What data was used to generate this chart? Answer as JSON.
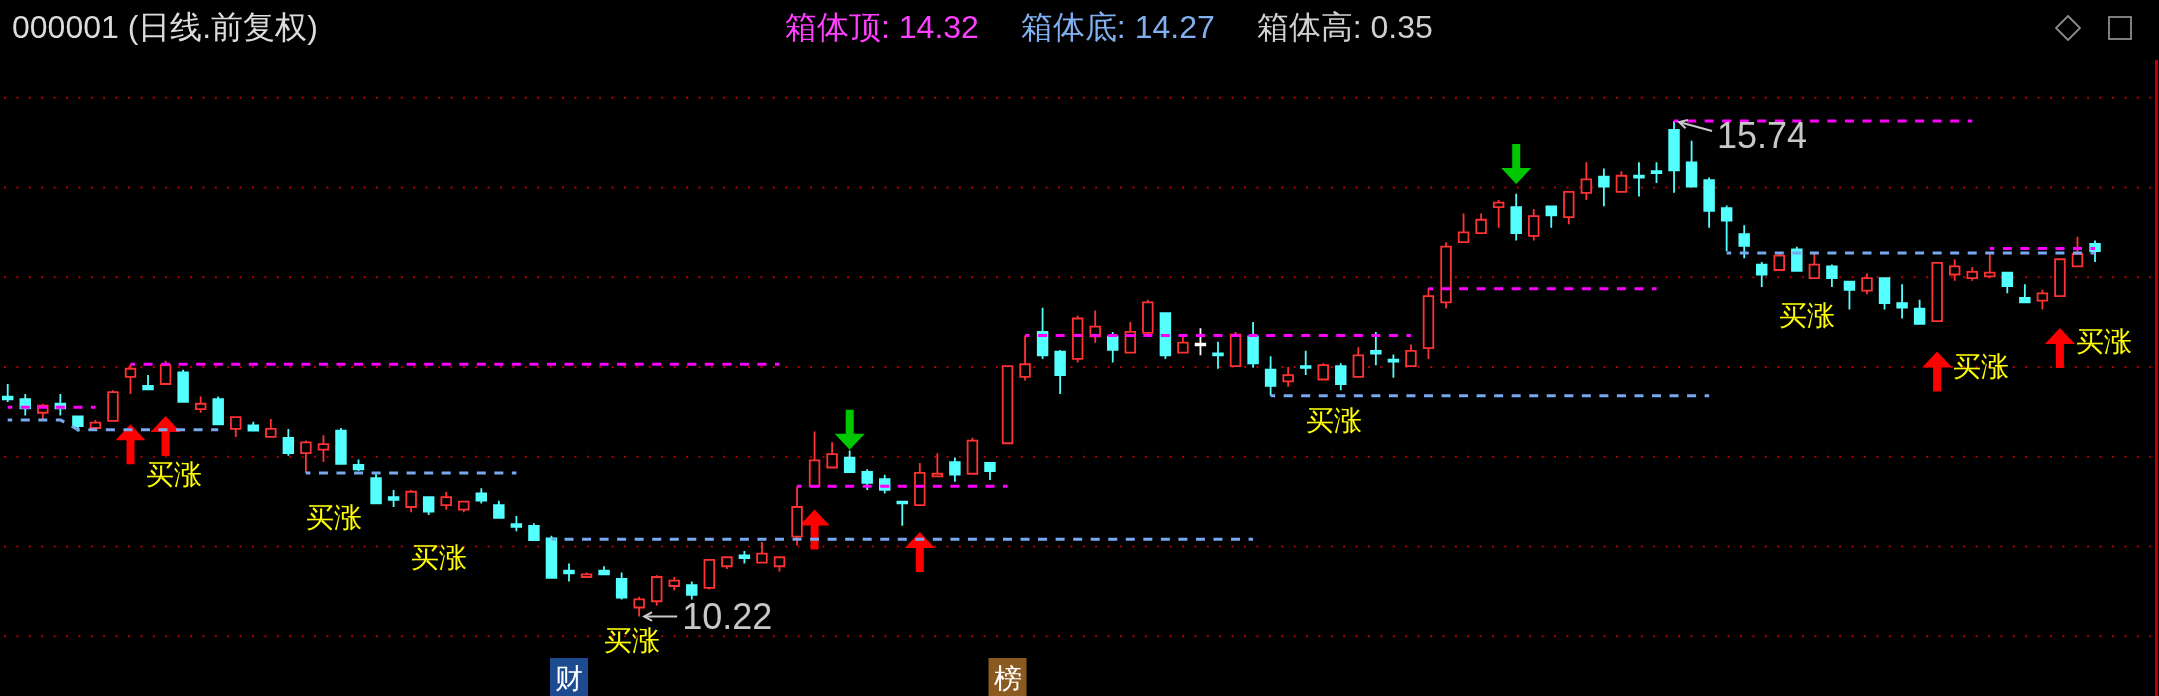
{
  "chart_data": {
    "type": "candlestick",
    "title": "000001 (日线.前复权)",
    "categories": [
      null,
      null,
      null,
      null,
      null,
      null,
      null,
      null,
      null,
      null,
      null,
      null,
      null,
      null,
      null,
      null,
      null,
      null,
      null,
      null,
      null,
      null,
      null,
      null,
      null,
      null,
      null,
      null,
      null,
      null,
      null,
      null,
      "财",
      null,
      null,
      null,
      null,
      null,
      null,
      null,
      null,
      null,
      null,
      null,
      null,
      null,
      null,
      null,
      null,
      null,
      null,
      null,
      null,
      null,
      null,
      null,
      null,
      "榜",
      null,
      null,
      null,
      null,
      null,
      null,
      null,
      null,
      null,
      null,
      null,
      null,
      null,
      null,
      null,
      null,
      null,
      null,
      null,
      null,
      null,
      null,
      null,
      null,
      null,
      null,
      null,
      null,
      null,
      null,
      null,
      null,
      null,
      null,
      null,
      null,
      null,
      null,
      null,
      null,
      null,
      null,
      null,
      null,
      null,
      null,
      null,
      null,
      null,
      null,
      null,
      null,
      null,
      null,
      null,
      null,
      null,
      null,
      null,
      null,
      null,
      null
    ],
    "tick_labels": "x",
    "ohlc": [
      [
        12.67,
        12.81,
        12.61,
        12.64
      ],
      [
        12.64,
        12.7,
        12.46,
        12.54
      ],
      [
        12.49,
        12.59,
        12.42,
        12.57
      ],
      [
        12.59,
        12.7,
        12.46,
        12.54
      ],
      [
        12.45,
        12.46,
        12.28,
        12.34
      ],
      [
        12.32,
        12.41,
        12.31,
        12.38
      ],
      [
        12.4,
        12.74,
        12.39,
        12.72
      ],
      [
        12.89,
        13.03,
        12.7,
        12.98
      ],
      [
        12.79,
        12.91,
        12.74,
        12.75
      ],
      [
        12.81,
        13.07,
        12.81,
        13.02
      ],
      [
        12.94,
        12.97,
        12.61,
        12.61
      ],
      [
        12.53,
        12.67,
        12.49,
        12.59
      ],
      [
        12.64,
        12.67,
        12.36,
        12.36
      ],
      [
        12.31,
        12.45,
        12.22,
        12.44
      ],
      [
        12.35,
        12.39,
        12.28,
        12.29
      ],
      [
        12.22,
        12.42,
        12.22,
        12.31
      ],
      [
        12.21,
        12.31,
        12.01,
        12.04
      ],
      [
        12.04,
        12.18,
        11.82,
        12.16
      ],
      [
        12.08,
        12.24,
        11.94,
        12.14
      ],
      [
        12.29,
        12.32,
        11.91,
        11.92
      ],
      [
        11.91,
        11.97,
        11.84,
        11.86
      ],
      [
        11.76,
        11.81,
        11.48,
        11.48
      ],
      [
        11.55,
        11.63,
        11.44,
        11.52
      ],
      [
        11.44,
        11.63,
        11.38,
        11.61
      ],
      [
        11.55,
        11.56,
        11.35,
        11.39
      ],
      [
        11.46,
        11.61,
        11.41,
        11.55
      ],
      [
        11.41,
        11.51,
        11.38,
        11.5
      ],
      [
        11.59,
        11.65,
        11.48,
        11.51
      ],
      [
        11.46,
        11.51,
        11.32,
        11.32
      ],
      [
        11.25,
        11.34,
        11.17,
        11.22
      ],
      [
        11.23,
        11.26,
        11.07,
        11.07
      ],
      [
        11.09,
        11.12,
        10.64,
        10.65
      ],
      [
        10.73,
        10.81,
        10.61,
        10.7
      ],
      [
        10.66,
        10.71,
        10.65,
        10.69
      ],
      [
        10.73,
        10.78,
        10.69,
        10.69
      ],
      [
        10.64,
        10.71,
        10.41,
        10.43
      ],
      [
        10.32,
        10.44,
        10.22,
        10.41
      ],
      [
        10.39,
        10.68,
        10.34,
        10.66
      ],
      [
        10.56,
        10.66,
        10.51,
        10.62
      ],
      [
        10.57,
        10.61,
        10.41,
        10.46
      ],
      [
        10.54,
        10.86,
        10.52,
        10.85
      ],
      [
        10.78,
        10.89,
        10.75,
        10.88
      ],
      [
        10.9,
        10.95,
        10.81,
        10.87
      ],
      [
        10.82,
        11.05,
        10.82,
        10.92
      ],
      [
        10.78,
        10.88,
        10.72,
        10.88
      ],
      [
        11.11,
        11.67,
        11.01,
        11.44
      ],
      [
        11.67,
        12.28,
        11.67,
        11.96
      ],
      [
        11.88,
        12.16,
        11.88,
        12.03
      ],
      [
        11.99,
        12.07,
        11.83,
        11.83
      ],
      [
        11.83,
        11.86,
        11.63,
        11.71
      ],
      [
        11.75,
        11.8,
        11.59,
        11.63
      ],
      [
        11.5,
        11.51,
        11.23,
        11.48
      ],
      [
        11.46,
        11.93,
        11.46,
        11.82
      ],
      [
        11.78,
        12.04,
        11.78,
        11.81
      ],
      [
        11.94,
        11.99,
        11.72,
        11.8
      ],
      [
        11.81,
        12.21,
        11.81,
        12.18
      ],
      [
        11.93,
        11.94,
        11.74,
        11.84
      ],
      [
        12.15,
        13.01,
        12.15,
        13.01
      ],
      [
        12.89,
        13.35,
        12.85,
        13.03
      ],
      [
        13.39,
        13.66,
        13.09,
        13.13
      ],
      [
        13.17,
        13.19,
        12.7,
        12.91
      ],
      [
        13.09,
        13.57,
        13.05,
        13.54
      ],
      [
        13.34,
        13.63,
        13.27,
        13.45
      ],
      [
        13.34,
        13.39,
        13.05,
        13.19
      ],
      [
        13.16,
        13.5,
        13.16,
        13.39
      ],
      [
        13.38,
        13.75,
        13.34,
        13.72
      ],
      [
        13.6,
        13.61,
        13.09,
        13.13
      ],
      [
        13.16,
        13.34,
        13.16,
        13.27
      ],
      [
        13.25,
        13.43,
        13.13,
        13.25
      ],
      [
        13.15,
        13.28,
        12.98,
        13.13
      ],
      [
        13.01,
        13.39,
        13.01,
        13.36
      ],
      [
        13.34,
        13.5,
        12.99,
        13.04
      ],
      [
        12.97,
        13.12,
        12.68,
        12.79
      ],
      [
        12.84,
        13.0,
        12.78,
        12.91
      ],
      [
        13.01,
        13.18,
        12.91,
        12.99
      ],
      [
        12.86,
        13.04,
        12.85,
        13.02
      ],
      [
        13.01,
        13.04,
        12.74,
        12.81
      ],
      [
        12.89,
        13.22,
        12.88,
        13.13
      ],
      [
        13.18,
        13.39,
        13.02,
        13.15
      ],
      [
        13.08,
        13.14,
        12.88,
        13.06
      ],
      [
        13.01,
        13.25,
        13.01,
        13.18
      ],
      [
        13.21,
        13.88,
        13.09,
        13.79
      ],
      [
        13.72,
        14.39,
        13.65,
        14.34
      ],
      [
        14.39,
        14.71,
        14.38,
        14.5
      ],
      [
        14.49,
        14.71,
        14.49,
        14.64
      ],
      [
        14.78,
        14.86,
        14.55,
        14.83
      ],
      [
        14.78,
        14.93,
        14.41,
        14.49
      ],
      [
        14.46,
        14.76,
        14.41,
        14.68
      ],
      [
        14.79,
        14.8,
        14.55,
        14.69
      ],
      [
        14.67,
        14.96,
        14.59,
        14.95
      ],
      [
        14.94,
        15.28,
        14.86,
        15.09
      ],
      [
        15.12,
        15.21,
        14.79,
        15.01
      ],
      [
        14.95,
        15.18,
        14.94,
        15.13
      ],
      [
        15.13,
        15.28,
        14.9,
        15.11
      ],
      [
        15.18,
        15.28,
        15.05,
        15.16
      ],
      [
        15.64,
        15.74,
        14.94,
        15.19
      ],
      [
        15.28,
        15.52,
        15.01,
        15.01
      ],
      [
        15.08,
        15.11,
        14.55,
        14.74
      ],
      [
        14.77,
        14.8,
        14.29,
        14.63
      ],
      [
        14.48,
        14.58,
        14.21,
        14.35
      ],
      [
        14.14,
        14.17,
        13.89,
        14.03
      ],
      [
        14.08,
        14.26,
        14.07,
        14.24
      ],
      [
        14.31,
        14.34,
        14.07,
        14.07
      ],
      [
        13.99,
        14.26,
        13.99,
        14.14
      ],
      [
        14.12,
        14.14,
        13.89,
        13.99
      ],
      [
        13.95,
        13.96,
        13.64,
        13.86
      ],
      [
        13.85,
        14.04,
        13.81,
        13.99
      ],
      [
        13.99,
        13.99,
        13.64,
        13.71
      ],
      [
        13.71,
        13.92,
        13.54,
        13.66
      ],
      [
        13.65,
        13.75,
        13.48,
        13.48
      ],
      [
        13.51,
        14.17,
        13.51,
        14.16
      ],
      [
        14.03,
        14.2,
        13.96,
        14.12
      ],
      [
        13.99,
        14.11,
        13.96,
        14.06
      ],
      [
        14.01,
        14.26,
        13.99,
        14.05
      ],
      [
        14.05,
        14.06,
        13.82,
        13.9
      ],
      [
        13.77,
        13.92,
        13.71,
        13.72
      ],
      [
        13.74,
        13.86,
        13.64,
        13.82
      ],
      [
        13.79,
        14.21,
        13.78,
        14.2
      ],
      [
        14.12,
        14.45,
        14.11,
        14.26
      ],
      [
        14.37,
        14.41,
        14.17,
        14.29
      ]
    ],
    "colors": [
      "#54ffff",
      "#54ffff",
      "#ff3232",
      "#54ffff",
      "#54ffff",
      "#ff3232",
      "#ff3232",
      "#ff3232",
      "#54ffff",
      "#ff3232",
      "#54ffff",
      "#ff3232",
      "#54ffff",
      "#ff3232",
      "#54ffff",
      "#ff3232",
      "#54ffff",
      "#ff3232",
      "#ff3232",
      "#54ffff",
      "#54ffff",
      "#54ffff",
      "#54ffff",
      "#ff3232",
      "#54ffff",
      "#ff3232",
      "#ff3232",
      "#54ffff",
      "#54ffff",
      "#54ffff",
      "#54ffff",
      "#54ffff",
      "#54ffff",
      "#ff3232",
      "#54ffff",
      "#54ffff",
      "#ff3232",
      "#ff3232",
      "#ff3232",
      "#54ffff",
      "#ff3232",
      "#ff3232",
      "#54ffff",
      "#ff3232",
      "#ff3232",
      "#ff3232",
      "#ff3232",
      "#ff3232",
      "#54ffff",
      "#54ffff",
      "#54ffff",
      "#54ffff",
      "#ff3232",
      "#ff3232",
      "#54ffff",
      "#ff3232",
      "#54ffff",
      "#ff3232",
      "#ff3232",
      "#54ffff",
      "#54ffff",
      "#ff3232",
      "#ff3232",
      "#54ffff",
      "#ff3232",
      "#ff3232",
      "#54ffff",
      "#ff3232",
      "#ffffff",
      "#54ffff",
      "#ff3232",
      "#54ffff",
      "#54ffff",
      "#ff3232",
      "#54ffff",
      "#ff3232",
      "#54ffff",
      "#ff3232",
      "#54ffff",
      "#54ffff",
      "#ff3232",
      "#ff3232",
      "#ff3232",
      "#ff3232",
      "#ff3232",
      "#ff3232",
      "#54ffff",
      "#ff3232",
      "#54ffff",
      "#ff3232",
      "#ff3232",
      "#54ffff",
      "#ff3232",
      "#54ffff",
      "#54ffff",
      "#54ffff",
      "#54ffff",
      "#54ffff",
      "#54ffff",
      "#54ffff",
      "#54ffff",
      "#ff3232",
      "#54ffff",
      "#ff3232",
      "#54ffff",
      "#54ffff",
      "#ff3232",
      "#54ffff",
      "#54ffff",
      "#54ffff",
      "#ff3232",
      "#ff3232",
      "#ff3232",
      "#ff3232",
      "#54ffff",
      "#54ffff",
      "#ff3232",
      "#ff3232",
      "#ff3232",
      "#54ffff"
    ],
    "value_labels": [
      null,
      null,
      null,
      null,
      null,
      null,
      null,
      "买涨",
      null,
      null,
      null,
      null,
      null,
      null,
      null,
      null,
      null,
      "买涨",
      null,
      null,
      null,
      null,
      null,
      "买涨",
      null,
      null,
      null,
      null,
      null,
      null,
      null,
      null,
      null,
      null,
      "买涨",
      null,
      "10.22",
      null,
      null,
      null,
      null,
      null,
      null,
      null,
      null,
      null,
      null,
      null,
      null,
      null,
      null,
      null,
      null,
      null,
      null,
      null,
      null,
      null,
      null,
      null,
      null,
      null,
      null,
      null,
      null,
      null,
      null,
      null,
      null,
      null,
      null,
      null,
      null,
      null,
      "买涨",
      null,
      null,
      null,
      null,
      null,
      null,
      null,
      null,
      null,
      null,
      null,
      null,
      null,
      null,
      null,
      null,
      null,
      null,
      null,
      null,
      "15.74",
      null,
      null,
      null,
      null,
      null,
      "买涨",
      null,
      null,
      null,
      null,
      null,
      null,
      null,
      null,
      "买涨",
      null,
      null,
      null,
      null,
      null,
      null,
      "买涨",
      null,
      null
    ],
    "yticks": [
      {
        "value": 16,
        "label": null
      },
      {
        "value": 15,
        "label": null
      },
      {
        "value": 14,
        "label": null
      },
      {
        "value": 13,
        "label": null
      },
      {
        "value": 12,
        "label": null
      },
      {
        "value": 11,
        "label": null
      },
      {
        "value": 10,
        "label": null
      }
    ],
    "grid": "y",
    "series": [
      {
        "type": "line",
        "color": "#ff00ff",
        "line_style": "dashed",
        "values": [
          12.55,
          12.55,
          12.55,
          12.55,
          12.55,
          12.55,
          null,
          null,
          null,
          null,
          null,
          null,
          null,
          null,
          null,
          null,
          null,
          null,
          null,
          null,
          null,
          null,
          null,
          null,
          null,
          null,
          null,
          null,
          null,
          null,
          null,
          null,
          null,
          null,
          null,
          null,
          null,
          null,
          null,
          null,
          null,
          null,
          null,
          null,
          null,
          11.67,
          11.67,
          11.67,
          11.67,
          11.67,
          11.67,
          11.67,
          11.67,
          11.67,
          11.67,
          11.67,
          11.67,
          11.67,
          null,
          null,
          null,
          null,
          null,
          null,
          null,
          null,
          null,
          null,
          null,
          null,
          null,
          null,
          null,
          null,
          null,
          null,
          null,
          null,
          null,
          null,
          null,
          13.87,
          13.87,
          13.87,
          13.87,
          13.87,
          13.87,
          13.87,
          13.87,
          13.87,
          13.87,
          13.87,
          13.87,
          13.87,
          13.87,
          null,
          null,
          null,
          null,
          null,
          null,
          null,
          null,
          null,
          null,
          null,
          null,
          null,
          null,
          null,
          null,
          null,
          null,
          14.32,
          14.32,
          14.32,
          14.32,
          14.32,
          14.32,
          14.32
        ]
      },
      {
        "type": "line",
        "color": "#ff00ff",
        "line_style": "dashed",
        "values": [
          null,
          null,
          null,
          null,
          null,
          null,
          null,
          13.03,
          13.03,
          13.03,
          13.03,
          13.03,
          13.03,
          13.03,
          13.03,
          13.03,
          13.03,
          13.03,
          13.03,
          13.03,
          13.03,
          13.03,
          13.03,
          13.03,
          13.03,
          13.03,
          13.03,
          13.03,
          13.03,
          13.03,
          13.03,
          13.03,
          13.03,
          13.03,
          13.03,
          13.03,
          13.03,
          13.03,
          13.03,
          13.03,
          13.03,
          13.03,
          13.03,
          13.03,
          13.03,
          null,
          null,
          null,
          null,
          null,
          null,
          null,
          null,
          null,
          null,
          null,
          null,
          null,
          13.35,
          13.35,
          13.35,
          13.35,
          13.35,
          13.35,
          13.35,
          13.35,
          13.35,
          13.35,
          13.35,
          13.35,
          13.35,
          13.35,
          13.35,
          13.35,
          13.35,
          13.35,
          13.35,
          13.35,
          13.35,
          13.35,
          13.35,
          null,
          null,
          null,
          null,
          null,
          null,
          null,
          null,
          null,
          null,
          null,
          null,
          null,
          null,
          15.74,
          15.74,
          15.74,
          15.74,
          15.74,
          15.74,
          15.74,
          15.74,
          15.74,
          15.74,
          15.74,
          15.74,
          15.74,
          15.74,
          15.74,
          15.74,
          15.74,
          15.74,
          null,
          null,
          null,
          null,
          null,
          null,
          null
        ]
      },
      {
        "type": "line",
        "color": "#78a8f0",
        "line_style": "dashed",
        "values": [
          12.41,
          12.41,
          12.41,
          12.41,
          12.3,
          12.3,
          12.3,
          12.3,
          12.3,
          12.3,
          12.3,
          12.3,
          12.3,
          null,
          null,
          null,
          null,
          11.82,
          11.82,
          11.82,
          11.82,
          11.82,
          11.82,
          11.82,
          11.82,
          11.82,
          11.82,
          11.82,
          11.82,
          11.82,
          null,
          null,
          null,
          null,
          null,
          null,
          null,
          null,
          null,
          null,
          null,
          null,
          null,
          null,
          null,
          null,
          null,
          null,
          null,
          null,
          null,
          null,
          null,
          null,
          null,
          null,
          null,
          null,
          null,
          null,
          null,
          null,
          null,
          null,
          null,
          null,
          null,
          null,
          null,
          null,
          null,
          null,
          12.68,
          12.68,
          12.68,
          12.68,
          12.68,
          12.68,
          12.68,
          12.68,
          12.68,
          12.68,
          12.68,
          12.68,
          12.68,
          12.68,
          12.68,
          12.68,
          12.68,
          12.68,
          12.68,
          12.68,
          12.68,
          12.68,
          12.68,
          12.68,
          12.68,
          12.68,
          null,
          null,
          null,
          null,
          null,
          null,
          null,
          null,
          null,
          null,
          null,
          null,
          null,
          null,
          null,
          null,
          null,
          null,
          null,
          null,
          null,
          null
        ]
      },
      {
        "type": "line",
        "color": "#78a8f0",
        "line_style": "dashed",
        "values": [
          null,
          null,
          null,
          null,
          null,
          null,
          null,
          null,
          null,
          null,
          null,
          null,
          null,
          null,
          null,
          null,
          null,
          null,
          null,
          null,
          null,
          null,
          null,
          null,
          null,
          null,
          null,
          null,
          null,
          null,
          null,
          11.08,
          11.08,
          11.08,
          11.08,
          11.08,
          11.08,
          11.08,
          11.08,
          11.08,
          11.08,
          11.08,
          11.08,
          11.08,
          11.08,
          11.08,
          11.08,
          11.08,
          11.08,
          11.08,
          11.08,
          11.08,
          11.08,
          11.08,
          11.08,
          11.08,
          11.08,
          11.08,
          11.08,
          11.08,
          11.08,
          11.08,
          11.08,
          11.08,
          11.08,
          11.08,
          11.08,
          11.08,
          11.08,
          11.08,
          11.08,
          11.08,
          null,
          null,
          null,
          null,
          null,
          null,
          null,
          null,
          null,
          null,
          null,
          null,
          null,
          null,
          null,
          null,
          null,
          null,
          null,
          null,
          null,
          null,
          null,
          null,
          null,
          null,
          14.27,
          14.27,
          14.27,
          14.27,
          14.27,
          14.27,
          14.27,
          14.27,
          14.27,
          14.27,
          14.27,
          14.27,
          14.27,
          14.27,
          14.27,
          14.27,
          14.27,
          14.27,
          14.27,
          14.27,
          14.27,
          14.27
        ]
      },
      {
        "type": "scatter",
        "color": "#ff0000",
        "values": [
          null,
          null,
          null,
          null,
          null,
          null,
          null,
          12.14,
          null,
          12.23,
          null,
          null,
          null,
          null,
          null,
          null,
          null,
          null,
          null,
          null,
          null,
          null,
          null,
          null,
          null,
          null,
          null,
          null,
          null,
          null,
          null,
          null,
          null,
          null,
          null,
          null,
          null,
          null,
          null,
          null,
          null,
          null,
          null,
          null,
          null,
          null,
          11.19,
          null,
          null,
          null,
          null,
          null,
          10.94,
          null,
          null,
          null,
          null,
          null,
          null,
          null,
          null,
          null,
          null,
          null,
          null,
          null,
          null,
          null,
          null,
          null,
          null,
          null,
          null,
          null,
          null,
          null,
          null,
          null,
          null,
          null,
          null,
          null,
          null,
          null,
          null,
          null,
          null,
          null,
          null,
          null,
          null,
          null,
          null,
          null,
          null,
          null,
          null,
          null,
          null,
          null,
          null,
          null,
          null,
          null,
          null,
          null,
          null,
          null,
          null,
          null,
          12.95,
          null,
          null,
          null,
          null,
          null,
          null,
          13.21,
          null,
          null
        ]
      },
      {
        "type": "scatter",
        "color": "#00c800",
        "values": [
          null,
          null,
          null,
          null,
          null,
          null,
          null,
          null,
          null,
          null,
          null,
          null,
          null,
          null,
          null,
          null,
          null,
          null,
          null,
          null,
          null,
          null,
          null,
          null,
          null,
          null,
          null,
          null,
          null,
          null,
          null,
          null,
          null,
          null,
          null,
          null,
          null,
          null,
          null,
          null,
          null,
          null,
          null,
          null,
          null,
          null,
          null,
          null,
          12.3,
          null,
          null,
          null,
          null,
          null,
          null,
          null,
          null,
          null,
          null,
          null,
          null,
          null,
          null,
          null,
          null,
          null,
          null,
          null,
          null,
          null,
          null,
          null,
          null,
          null,
          null,
          null,
          null,
          null,
          null,
          null,
          null,
          null,
          null,
          null,
          null,
          null,
          15.26,
          null,
          null,
          null,
          null,
          null,
          null,
          null,
          null,
          null,
          null,
          null,
          null,
          null,
          null,
          null,
          null,
          null,
          null,
          null,
          null,
          null,
          null,
          null,
          null,
          null,
          null,
          null,
          null,
          null,
          null,
          null,
          null,
          null
        ]
      }
    ],
    "annotations": [
      "箱体顶: 14.32",
      "箱体底: 14.27",
      "箱体高: 0.35"
    ]
  }
}
